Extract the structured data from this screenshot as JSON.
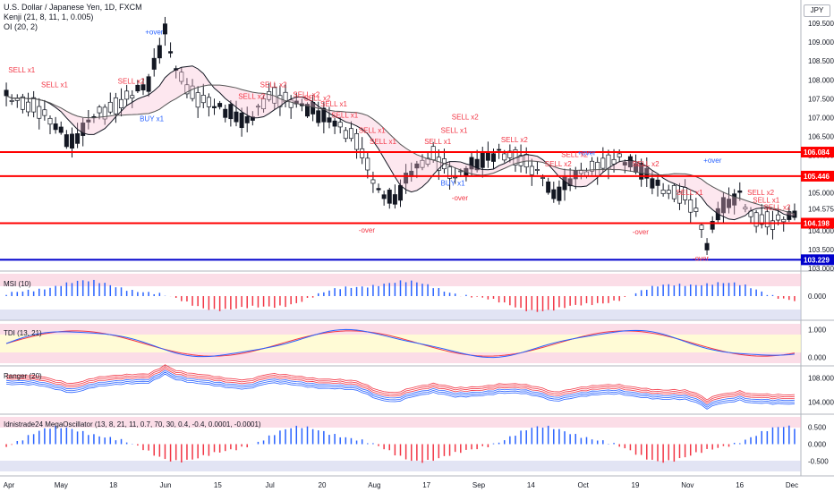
{
  "header": {
    "symbol": "U.S. Dollar / Japanese Yen, 1D, FXCM",
    "indicator_1": "Kenji (21, 8, 11, 1, 0.005)",
    "indicator_2": "OI (20, 2)"
  },
  "currency_button": "JPY",
  "panes": {
    "msi": "MSI (10)",
    "tdi": "TDI (13, 21)",
    "ranger": "Ranger (20)",
    "mega": "Idnistrade24 MegaOscillator (13, 8, 21, 11, 0.7, 70, 30, 0.4, -0.4, 0.0001, -0.0001)"
  },
  "colors": {
    "up": "#131722",
    "down": "#131722",
    "resistance": "#ff0000",
    "support": "#0000cc",
    "sell": "#f23645",
    "buy": "#2962ff",
    "ma": "#131722"
  },
  "chart_data": [
    {
      "type": "candlestick",
      "title": "U.S. Dollar / Japanese Yen, 1D, FXCM",
      "x_tick_labels": [
        "Apr",
        "May",
        "18",
        "Jun",
        "15",
        "Jul",
        "20",
        "Aug",
        "17",
        "Sep",
        "14",
        "Oct",
        "19",
        "Nov",
        "16",
        "Dec"
      ],
      "y_tick_labels": [
        "109.500",
        "109.000",
        "108.500",
        "108.000",
        "107.500",
        "107.000",
        "106.500",
        "106.000",
        "105.500",
        "105.000",
        "104.575",
        "104.000",
        "103.500",
        "103.000"
      ],
      "ylim": [
        103.0,
        110.0
      ],
      "horizontal_levels": [
        {
          "value": 106.084,
          "label": "106.084",
          "color": "#ff0000"
        },
        {
          "value": 105.446,
          "label": "105.446",
          "color": "#ff0000"
        },
        {
          "value": 104.198,
          "label": "104.198",
          "color": "#ff0000"
        },
        {
          "value": 103.229,
          "label": "103.229",
          "color": "#0000cc"
        }
      ],
      "annotations": [
        {
          "text": "SELL x1",
          "x_index": 2,
          "y": 108.2,
          "color": "#f23645"
        },
        {
          "text": "SELL x1",
          "x_index": 8,
          "y": 107.8,
          "color": "#f23645"
        },
        {
          "text": "SELL x2",
          "x_index": 22,
          "y": 107.9,
          "color": "#f23645"
        },
        {
          "text": "+over",
          "x_index": 27,
          "y": 109.2,
          "color": "#2962ff"
        },
        {
          "text": "BUY x1",
          "x_index": 26,
          "y": 106.9,
          "color": "#2962ff"
        },
        {
          "text": "SELL x2",
          "x_index": 44,
          "y": 107.5,
          "color": "#f23645"
        },
        {
          "text": "SELL x2",
          "x_index": 48,
          "y": 107.8,
          "color": "#f23645"
        },
        {
          "text": "SELL x2",
          "x_index": 54,
          "y": 107.55,
          "color": "#f23645"
        },
        {
          "text": "SELL x2",
          "x_index": 56,
          "y": 107.45,
          "color": "#f23645"
        },
        {
          "text": "SELL x1",
          "x_index": 59,
          "y": 107.3,
          "color": "#f23645"
        },
        {
          "text": "SELL x1",
          "x_index": 61,
          "y": 107.0,
          "color": "#f23645"
        },
        {
          "text": "SELL x1",
          "x_index": 66,
          "y": 106.6,
          "color": "#f23645"
        },
        {
          "text": "SELL x1",
          "x_index": 68,
          "y": 106.3,
          "color": "#f23645"
        },
        {
          "text": "-over",
          "x_index": 66,
          "y": 103.95,
          "color": "#f23645"
        },
        {
          "text": "SELL x2",
          "x_index": 83,
          "y": 106.95,
          "color": "#f23645"
        },
        {
          "text": "SELL x1",
          "x_index": 81,
          "y": 106.6,
          "color": "#f23645"
        },
        {
          "text": "SELL x1",
          "x_index": 78,
          "y": 106.3,
          "color": "#f23645"
        },
        {
          "text": "BUY x1",
          "x_index": 81,
          "y": 105.2,
          "color": "#2962ff"
        },
        {
          "text": "-over",
          "x_index": 83,
          "y": 104.8,
          "color": "#f23645"
        },
        {
          "text": "SELL x2",
          "x_index": 92,
          "y": 106.35,
          "color": "#f23645"
        },
        {
          "text": "SELL x2",
          "x_index": 100,
          "y": 105.7,
          "color": "#f23645"
        },
        {
          "text": "SELL x2",
          "x_index": 103,
          "y": 105.95,
          "color": "#f23645"
        },
        {
          "text": "+over",
          "x_index": 106,
          "y": 106.0,
          "color": "#2962ff"
        },
        {
          "text": "SELL x2",
          "x_index": 116,
          "y": 105.7,
          "color": "#f23645"
        },
        {
          "text": "-over",
          "x_index": 116,
          "y": 103.9,
          "color": "#f23645"
        },
        {
          "text": "SELL x1",
          "x_index": 124,
          "y": 104.95,
          "color": "#f23645"
        },
        {
          "text": "+over",
          "x_index": 129,
          "y": 105.8,
          "color": "#2962ff"
        },
        {
          "text": "SELL x2",
          "x_index": 137,
          "y": 104.95,
          "color": "#f23645"
        },
        {
          "text": "SELL x1",
          "x_index": 138,
          "y": 104.75,
          "color": "#f23645"
        },
        {
          "text": "SELL x2",
          "x_index": 140,
          "y": 104.55,
          "color": "#f23645"
        },
        {
          "text": "-over",
          "x_index": 127,
          "y": 103.2,
          "color": "#f23645"
        }
      ],
      "ohlc_description": "USD/JPY daily candles from April to early December; price peaks near 109.8 in early June then trends down to about 103.2 in early November, closing near 104.4."
    },
    {
      "type": "bar",
      "title": "MSI (10)",
      "y_tick_labels": [
        "0.000"
      ],
      "ylim": [
        -1.0,
        1.0
      ]
    },
    {
      "type": "line",
      "title": "TDI (13, 21)",
      "y_tick_labels": [
        "1.000",
        "0.000"
      ],
      "ylim": [
        -0.2,
        1.2
      ]
    },
    {
      "type": "line",
      "title": "Ranger (20)",
      "y_tick_labels": [
        "108.000",
        "104.000"
      ],
      "ylim": [
        102.5,
        109.5
      ]
    },
    {
      "type": "bar",
      "title": "Idnistrade24 MegaOscillator (13, 8, 21, 11, 0.7, 70, 30, 0.4, -0.4, 0.0001, -0.0001)",
      "y_tick_labels": [
        "0.500",
        "0.000",
        "-0.500"
      ],
      "ylim": [
        -0.8,
        0.8
      ]
    }
  ]
}
